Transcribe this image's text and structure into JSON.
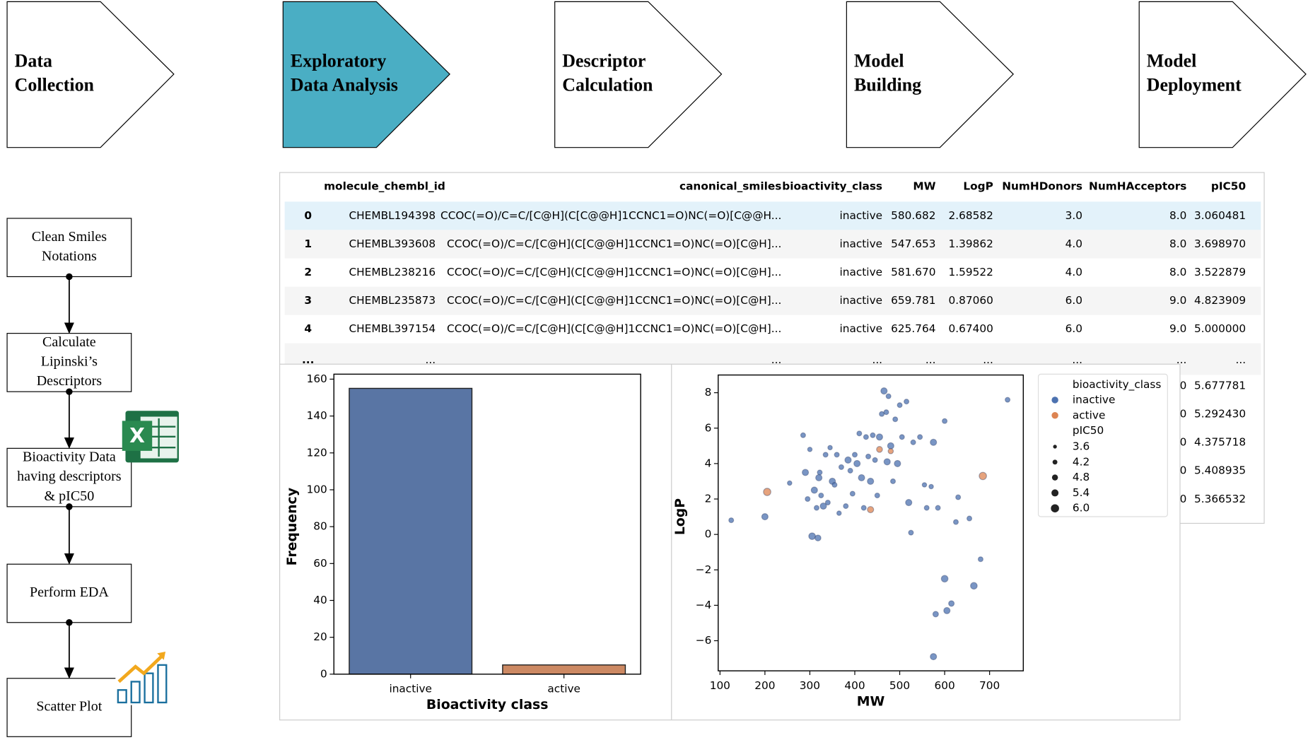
{
  "pipeline": [
    [
      "Data",
      "Collection"
    ],
    [
      "Exploratory",
      "Data Analysis"
    ],
    [
      "Descriptor",
      "Calculation"
    ],
    [
      "Model",
      "Building"
    ],
    [
      "Model",
      "Deployment"
    ]
  ],
  "flow": [
    [
      "Clean Smiles",
      "Notations"
    ],
    [
      "Calculate",
      "Lipinski’s",
      "Descriptors"
    ],
    [
      "Bioactivity Data",
      "having descriptors",
      "& pIC50"
    ],
    [
      "Perform EDA"
    ],
    [
      "Scatter Plot"
    ]
  ],
  "table": {
    "columns": [
      "molecule_chembl_id",
      "canonical_smiles",
      "bioactivity_class",
      "MW",
      "LogP",
      "NumHDonors",
      "NumHAcceptors",
      "pIC50"
    ],
    "rows": [
      [
        "0",
        "CHEMBL194398",
        "CCOC(=O)/C=C/[C@H](C[C@@H]1CCNC1=O)NC(=O)[C@@H...",
        "inactive",
        "580.682",
        "2.68582",
        "3.0",
        "8.0",
        "3.060481"
      ],
      [
        "1",
        "CHEMBL393608",
        "CCOC(=O)/C=C/[C@H](C[C@@H]1CCNC1=O)NC(=O)[C@H]...",
        "inactive",
        "547.653",
        "1.39862",
        "4.0",
        "8.0",
        "3.698970"
      ],
      [
        "2",
        "CHEMBL238216",
        "CCOC(=O)/C=C/[C@H](C[C@@H]1CCNC1=O)NC(=O)[C@H]...",
        "inactive",
        "581.670",
        "1.59522",
        "4.0",
        "8.0",
        "3.522879"
      ],
      [
        "3",
        "CHEMBL235873",
        "CCOC(=O)/C=C/[C@H](C[C@@H]1CCNC1=O)NC(=O)[C@H]...",
        "inactive",
        "659.781",
        "0.87060",
        "6.0",
        "9.0",
        "4.823909"
      ],
      [
        "4",
        "CHEMBL397154",
        "CCOC(=O)/C=C/[C@H](C[C@@H]1CCNC1=O)NC(=O)[C@H]...",
        "inactive",
        "625.764",
        "0.67400",
        "6.0",
        "9.0",
        "5.000000"
      ]
    ],
    "ellipsis": [
      "...",
      "...",
      "...",
      "...",
      "...",
      "...",
      "...",
      "...",
      "..."
    ],
    "tail": [
      [
        "0",
        "5.677781"
      ],
      [
        "0",
        "5.292430"
      ],
      [
        "0",
        "4.375718"
      ],
      [
        "0",
        "5.408935"
      ],
      [
        "0",
        "5.366532"
      ]
    ]
  },
  "chart_data": [
    {
      "type": "bar",
      "xlabel": "Bioactivity class",
      "ylabel": "Frequency",
      "categories": [
        "inactive",
        "active"
      ],
      "values": [
        155,
        5
      ],
      "colors": [
        "#5975a4",
        "#cc8963"
      ],
      "ylim": [
        0,
        162.7
      ],
      "yticks": [
        0,
        20,
        40,
        60,
        80,
        100,
        120,
        140,
        160
      ]
    },
    {
      "type": "scatter",
      "xlabel": "MW",
      "ylabel": "LogP",
      "legend_title": "bioactivity_class",
      "size_title": "pIC50",
      "size_legend": [
        3.6,
        4.2,
        4.8,
        5.4,
        {
          "value": 6,
          "label": "6.0"
        }
      ],
      "xlim": [
        96,
        775
      ],
      "ylim": [
        -7.7,
        9.0
      ],
      "xticks": [
        100,
        200,
        300,
        400,
        500,
        600,
        700
      ],
      "yticks": [
        {
          "value": -6,
          "label": "−6"
        },
        {
          "value": -4,
          "label": "−4"
        },
        {
          "value": -2,
          "label": "−2"
        },
        0,
        2,
        4,
        6,
        8
      ],
      "series": [
        {
          "name": "inactive",
          "color": "#4c72b0",
          "x": [
            125,
            200,
            255,
            285,
            290,
            295,
            300,
            305,
            310,
            315,
            318,
            320,
            322,
            325,
            330,
            335,
            340,
            345,
            350,
            355,
            360,
            365,
            370,
            380,
            385,
            390,
            395,
            400,
            405,
            410,
            415,
            420,
            425,
            430,
            435,
            440,
            445,
            450,
            455,
            460,
            465,
            470,
            472,
            475,
            480,
            485,
            490,
            495,
            500,
            505,
            515,
            520,
            525,
            530,
            545,
            555,
            560,
            570,
            575,
            580,
            585,
            600,
            600,
            605,
            615,
            625,
            630,
            655,
            665,
            680,
            740,
            575
          ],
          "values": [
            0.8,
            1.0,
            2.9,
            5.6,
            3.5,
            2.0,
            4.8,
            -0.1,
            2.5,
            1.5,
            -0.2,
            3.2,
            3.5,
            2.2,
            1.6,
            4.5,
            1.8,
            4.9,
            3.0,
            2.8,
            4.5,
            1.2,
            3.8,
            1.6,
            4.2,
            3.6,
            2.3,
            4.5,
            4.0,
            5.7,
            3.2,
            1.5,
            5.5,
            4.4,
            3.0,
            5.6,
            4.2,
            2.2,
            5.5,
            6.8,
            8.1,
            6.9,
            4.1,
            7.8,
            5.0,
            3.0,
            6.5,
            4.0,
            7.3,
            5.5,
            7.5,
            1.8,
            0.1,
            5.2,
            5.5,
            2.8,
            1.5,
            2.7,
            5.2,
            -4.5,
            1.5,
            6.4,
            -2.5,
            -4.3,
            -3.9,
            0.7,
            2.1,
            0.9,
            -2.9,
            -1.4,
            7.6,
            -6.9
          ],
          "size": [
            4.2,
            5.0,
            4.0,
            4.2,
            5.0,
            4.2,
            4.0,
            5.2,
            5.0,
            4.2,
            4.8,
            5.0,
            4.2,
            4.2,
            5.0,
            4.2,
            4.2,
            4.0,
            5.0,
            4.2,
            4.2,
            4.0,
            4.2,
            4.2,
            5.0,
            4.2,
            4.2,
            4.2,
            5.0,
            4.2,
            5.0,
            4.2,
            4.2,
            4.2,
            5.0,
            4.2,
            4.2,
            4.2,
            5.0,
            4.2,
            5.0,
            4.2,
            5.0,
            4.2,
            5.0,
            4.2,
            4.2,
            5.0,
            4.2,
            4.2,
            4.2,
            5.0,
            4.2,
            4.2,
            4.2,
            4.0,
            4.2,
            4.0,
            5.0,
            4.6,
            4.2,
            4.2,
            5.2,
            5.0,
            4.6,
            4.2,
            4.2,
            4.2,
            5.2,
            4.2,
            4.2,
            5.0
          ]
        },
        {
          "name": "active",
          "color": "#dd8452",
          "x": [
            205,
            455,
            480,
            435,
            685
          ],
          "values": [
            2.4,
            4.8,
            4.7,
            1.4,
            3.3
          ],
          "size": [
            5.6,
            4.8,
            4.4,
            5.0,
            5.6
          ]
        }
      ]
    }
  ]
}
